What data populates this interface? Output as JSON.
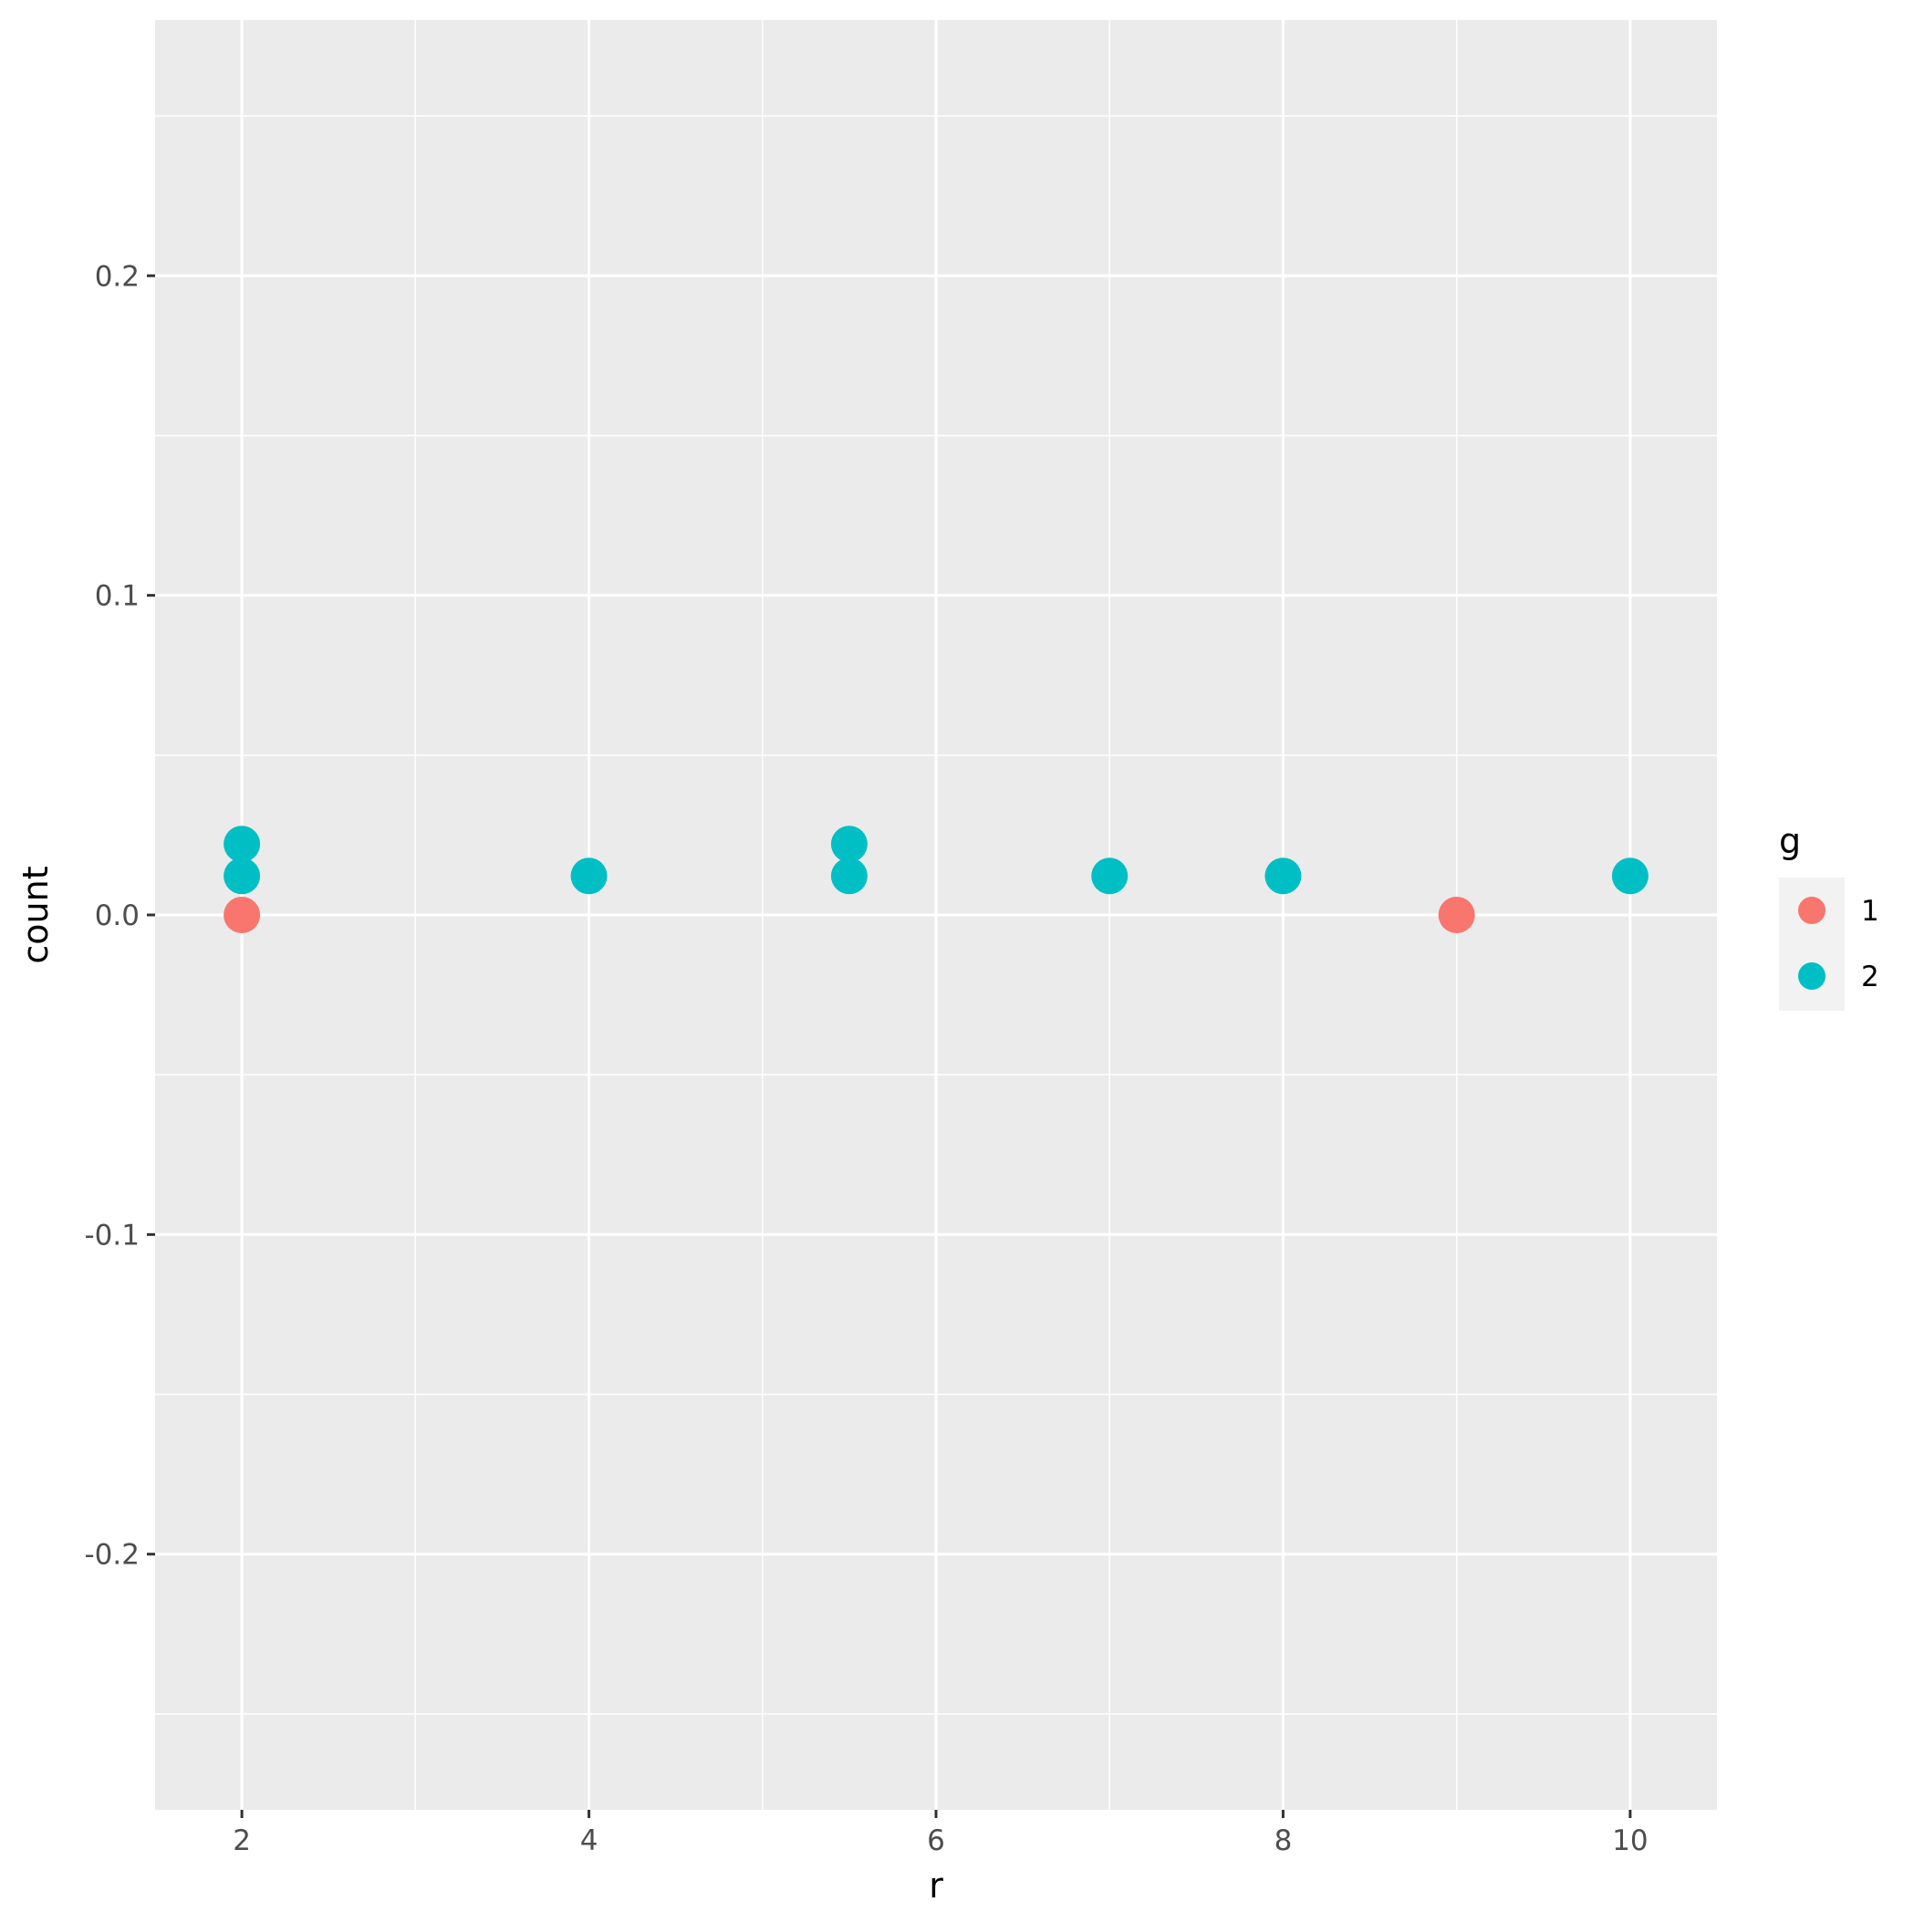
{
  "chart_data": {
    "type": "scatter",
    "xlabel": "r",
    "ylabel": "count",
    "xlim": [
      1.5,
      10.5
    ],
    "ylim": [
      -0.28,
      0.28
    ],
    "x_ticks": [
      2,
      4,
      6,
      8,
      10
    ],
    "x_tick_labels": [
      "2",
      "4",
      "6",
      "8",
      "10"
    ],
    "x_minor_ticks": [
      3,
      5,
      7,
      9
    ],
    "y_ticks": [
      -0.2,
      -0.1,
      0.0,
      0.1,
      0.2
    ],
    "y_tick_labels": [
      "-0.2",
      "-0.1",
      "0.0",
      "0.1",
      "0.2"
    ],
    "y_minor_ticks": [
      -0.25,
      -0.15,
      -0.05,
      0.05,
      0.15,
      0.25
    ],
    "grid": true,
    "legend_position": "right",
    "legend_title": "g",
    "series": [
      {
        "name": "1",
        "color": "#F8766D",
        "points": [
          {
            "x": 2,
            "y": 0.0
          },
          {
            "x": 9,
            "y": 0.0
          }
        ]
      },
      {
        "name": "2",
        "color": "#00BFC4",
        "points": [
          {
            "x": 2,
            "y": 0.0122
          },
          {
            "x": 2,
            "y": 0.0222
          },
          {
            "x": 4,
            "y": 0.0122
          },
          {
            "x": 5.5,
            "y": 0.0122
          },
          {
            "x": 5.5,
            "y": 0.0222
          },
          {
            "x": 7,
            "y": 0.0122
          },
          {
            "x": 8,
            "y": 0.0122
          },
          {
            "x": 10,
            "y": 0.0122
          }
        ]
      }
    ]
  }
}
